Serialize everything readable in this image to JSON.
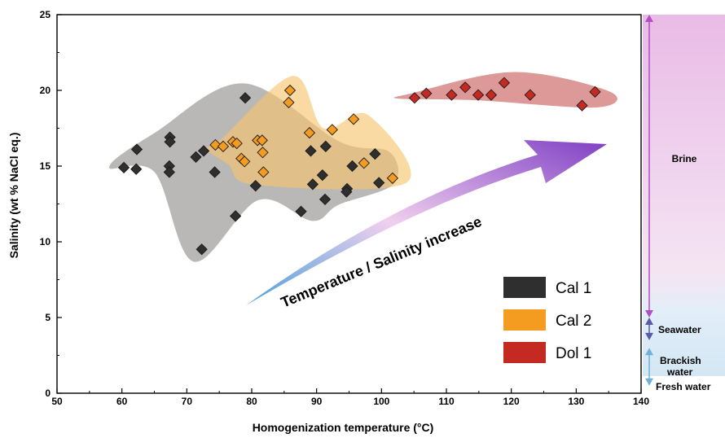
{
  "chart_data": {
    "type": "scatter",
    "xlabel": "Homogenization temperature (°C)",
    "ylabel": "Salinity (wt % NaCl eq.)",
    "xlim": [
      50,
      140
    ],
    "ylim": [
      0,
      25
    ],
    "x_ticks": [
      "50",
      "60",
      "70",
      "80",
      "90",
      "100",
      "110",
      "120",
      "130",
      "140"
    ],
    "y_ticks": [
      "0",
      "5",
      "10",
      "15",
      "20",
      "25"
    ],
    "grid": false,
    "legend_position": "center-right",
    "series": [
      {
        "name": "Cal 1",
        "color": "#2f2f2f",
        "region_color": "#8f8b8b",
        "points": [
          [
            60.3,
            14.9
          ],
          [
            62.3,
            16.1
          ],
          [
            62.2,
            14.8
          ],
          [
            67.4,
            16.9
          ],
          [
            67.4,
            16.6
          ],
          [
            67.3,
            15.0
          ],
          [
            67.3,
            14.6
          ],
          [
            71.4,
            15.6
          ],
          [
            72.6,
            16.0
          ],
          [
            74.3,
            14.6
          ],
          [
            72.3,
            9.5
          ],
          [
            77.5,
            11.7
          ],
          [
            79.0,
            19.5
          ],
          [
            80.6,
            13.7
          ],
          [
            87.6,
            12.0
          ],
          [
            89.1,
            16.0
          ],
          [
            89.4,
            13.8
          ],
          [
            90.9,
            14.4
          ],
          [
            91.4,
            16.3
          ],
          [
            91.3,
            12.8
          ],
          [
            94.7,
            13.5
          ],
          [
            94.6,
            13.3
          ],
          [
            95.5,
            15.0
          ],
          [
            99.0,
            15.8
          ],
          [
            99.6,
            13.9
          ]
        ]
      },
      {
        "name": "Cal 2",
        "color": "#f39c1f",
        "region_color": "#f7c36a",
        "points": [
          [
            74.4,
            16.4
          ],
          [
            75.6,
            16.3
          ],
          [
            77.1,
            16.6
          ],
          [
            77.7,
            16.5
          ],
          [
            78.4,
            15.5
          ],
          [
            78.9,
            15.3
          ],
          [
            80.9,
            16.7
          ],
          [
            81.7,
            15.9
          ],
          [
            81.6,
            16.7
          ],
          [
            81.8,
            14.6
          ],
          [
            85.7,
            19.2
          ],
          [
            85.9,
            20.0
          ],
          [
            88.9,
            17.2
          ],
          [
            92.4,
            17.4
          ],
          [
            95.7,
            18.1
          ],
          [
            97.3,
            15.2
          ],
          [
            101.7,
            14.2
          ]
        ]
      },
      {
        "name": "Dol 1",
        "color": "#c42a22",
        "region_color": "#c85a57",
        "points": [
          [
            105.1,
            19.5
          ],
          [
            106.9,
            19.8
          ],
          [
            110.8,
            19.7
          ],
          [
            112.9,
            20.2
          ],
          [
            114.9,
            19.7
          ],
          [
            116.9,
            19.7
          ],
          [
            118.9,
            20.5
          ],
          [
            122.9,
            19.7
          ],
          [
            130.9,
            19.0
          ],
          [
            132.9,
            19.9
          ]
        ]
      }
    ],
    "annotation": "Temperature / Salinity increase",
    "zones": [
      {
        "label": "Brine",
        "from": 5,
        "to": 25
      },
      {
        "label": "Seawater",
        "from": 3.5,
        "to": 5
      },
      {
        "label": "Brackish water",
        "from": 0.5,
        "to": 3
      },
      {
        "label": "Fresh water",
        "from": 0,
        "to": 0.5
      }
    ]
  }
}
